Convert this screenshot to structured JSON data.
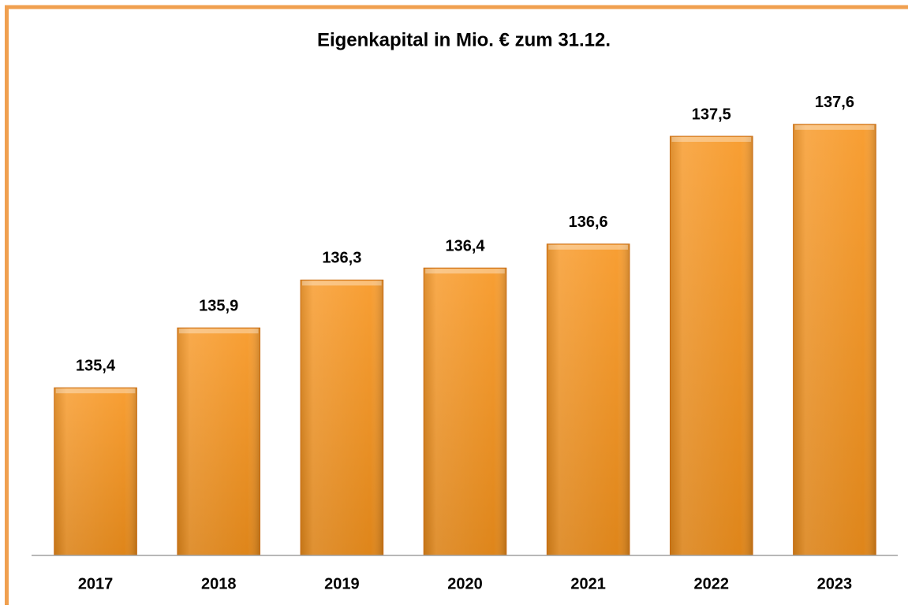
{
  "chart_data": {
    "type": "bar",
    "title": "Eigenkapital in Mio. € zum 31.12.",
    "categories": [
      "2017",
      "2018",
      "2019",
      "2020",
      "2021",
      "2022",
      "2023"
    ],
    "values": [
      135.4,
      135.9,
      136.3,
      136.4,
      136.6,
      137.5,
      137.6
    ],
    "value_labels": [
      "135,4",
      "135,9",
      "136,3",
      "136,4",
      "136,6",
      "137,5",
      "137,6"
    ],
    "color": "#f7941d",
    "ylim": [
      134,
      138
    ]
  }
}
